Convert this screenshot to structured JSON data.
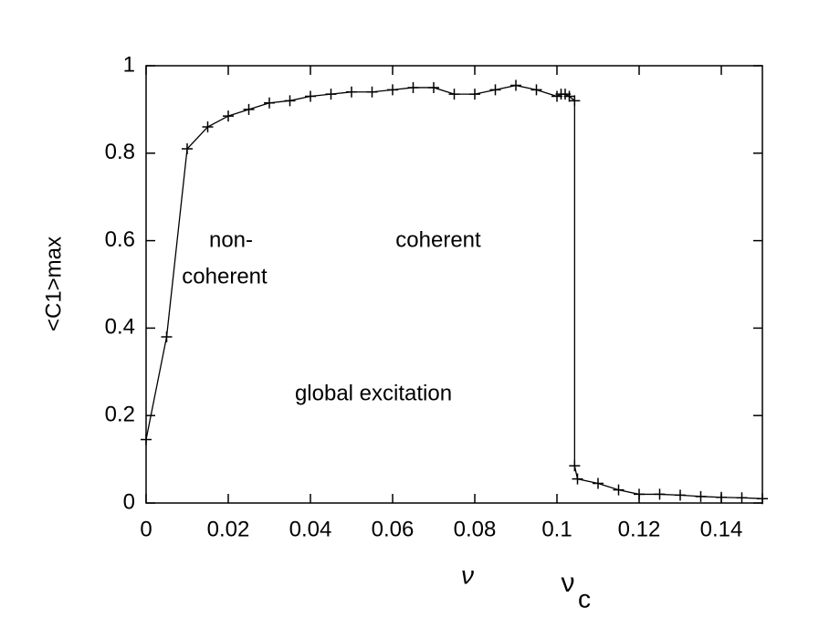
{
  "chart_data": {
    "type": "line",
    "x": [
      0,
      0.005,
      0.01,
      0.015,
      0.02,
      0.025,
      0.03,
      0.035,
      0.04,
      0.045,
      0.05,
      0.055,
      0.06,
      0.065,
      0.07,
      0.075,
      0.08,
      0.085,
      0.09,
      0.095,
      0.1,
      0.101,
      0.102,
      0.103,
      0.1043,
      0.1043,
      0.105,
      0.11,
      0.115,
      0.12,
      0.125,
      0.13,
      0.135,
      0.14,
      0.145,
      0.15
    ],
    "values": [
      0.145,
      0.38,
      0.81,
      0.86,
      0.885,
      0.9,
      0.915,
      0.92,
      0.93,
      0.935,
      0.94,
      0.94,
      0.945,
      0.95,
      0.95,
      0.935,
      0.935,
      0.945,
      0.955,
      0.945,
      0.93,
      0.935,
      0.935,
      0.93,
      0.92,
      0.085,
      0.055,
      0.045,
      0.03,
      0.02,
      0.02,
      0.018,
      0.015,
      0.013,
      0.012,
      0.01
    ],
    "color": "#000000",
    "xlabel": "ν",
    "ylabel": "<C1>max",
    "xlim": [
      0,
      0.15
    ],
    "ylim": [
      0,
      1
    ],
    "xticks": [
      0,
      0.02,
      0.04,
      0.06,
      0.08,
      0.1,
      0.12,
      0.14
    ],
    "yticks": [
      0,
      0.2,
      0.4,
      0.6,
      0.8,
      1
    ],
    "grid": false,
    "annotations": [
      "non-",
      "coherent",
      "coherent",
      "global excitation",
      "ν",
      "c"
    ]
  }
}
